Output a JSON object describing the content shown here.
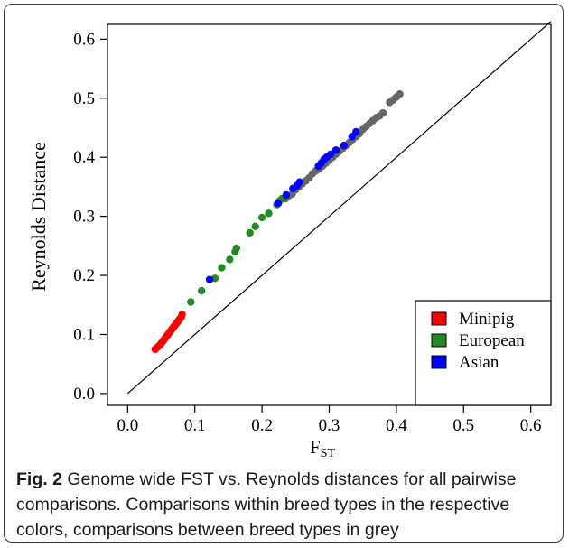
{
  "chart_data": {
    "type": "scatter",
    "xlabel_main": "F",
    "xlabel_sub": "ST",
    "ylabel": "Reynolds Distance",
    "xlim": [
      -0.03,
      0.63
    ],
    "ylim": [
      -0.02,
      0.625
    ],
    "xticks": [
      "0.0",
      "0.1",
      "0.2",
      "0.3",
      "0.4",
      "0.5",
      "0.6"
    ],
    "xtick_values": [
      0.0,
      0.1,
      0.2,
      0.3,
      0.4,
      0.5,
      0.6
    ],
    "yticks": [
      "0.0",
      "0.1",
      "0.2",
      "0.3",
      "0.4",
      "0.5",
      "0.6"
    ],
    "ytick_values": [
      0.0,
      0.1,
      0.2,
      0.3,
      0.4,
      0.5,
      0.6
    ],
    "reference_line": {
      "from": [
        0,
        0
      ],
      "to": [
        0.63,
        0.63
      ]
    },
    "legend_position": "bottom-right",
    "series": [
      {
        "key": "grey",
        "color": "#666666",
        "x": [
          0.235,
          0.24,
          0.245,
          0.25,
          0.255,
          0.26,
          0.265,
          0.27,
          0.275,
          0.28,
          0.285,
          0.29,
          0.295,
          0.3,
          0.305,
          0.31,
          0.315,
          0.32,
          0.325,
          0.33,
          0.335,
          0.34,
          0.345,
          0.35,
          0.355,
          0.36,
          0.365,
          0.37,
          0.375,
          0.38,
          0.39,
          0.395,
          0.4,
          0.405
        ],
        "y": [
          0.33,
          0.335,
          0.338,
          0.345,
          0.35,
          0.355,
          0.36,
          0.365,
          0.372,
          0.377,
          0.38,
          0.385,
          0.39,
          0.395,
          0.4,
          0.405,
          0.41,
          0.415,
          0.42,
          0.425,
          0.43,
          0.435,
          0.44,
          0.447,
          0.452,
          0.457,
          0.462,
          0.467,
          0.47,
          0.475,
          0.493,
          0.497,
          0.502,
          0.507
        ]
      },
      {
        "key": "minipig",
        "name": "Minipig",
        "color": "#ff0000",
        "x": [
          0.041,
          0.045,
          0.048,
          0.05,
          0.052,
          0.054,
          0.056,
          0.058,
          0.06,
          0.062,
          0.064,
          0.066,
          0.068,
          0.07,
          0.072,
          0.074,
          0.076,
          0.078,
          0.08,
          0.081
        ],
        "y": [
          0.075,
          0.079,
          0.082,
          0.085,
          0.088,
          0.091,
          0.094,
          0.097,
          0.1,
          0.103,
          0.106,
          0.109,
          0.112,
          0.115,
          0.118,
          0.121,
          0.124,
          0.127,
          0.13,
          0.134
        ]
      },
      {
        "key": "european",
        "name": "European",
        "color": "#228b22",
        "x": [
          0.094,
          0.11,
          0.13,
          0.14,
          0.152,
          0.16,
          0.162,
          0.182,
          0.19,
          0.2,
          0.21,
          0.222,
          0.226,
          0.23,
          0.236
        ],
        "y": [
          0.155,
          0.174,
          0.195,
          0.213,
          0.227,
          0.24,
          0.246,
          0.272,
          0.283,
          0.298,
          0.305,
          0.32,
          0.326,
          0.33,
          0.334
        ]
      },
      {
        "key": "asian",
        "name": "Asian",
        "color": "#0000ff",
        "x": [
          0.122,
          0.224,
          0.236,
          0.246,
          0.252,
          0.256,
          0.284,
          0.288,
          0.292,
          0.296,
          0.302,
          0.31,
          0.322,
          0.334,
          0.34
        ],
        "y": [
          0.193,
          0.322,
          0.336,
          0.347,
          0.352,
          0.358,
          0.385,
          0.39,
          0.396,
          0.4,
          0.405,
          0.412,
          0.42,
          0.435,
          0.443
        ]
      }
    ]
  },
  "caption": {
    "label": "Fig. 2",
    "text": " Genome wide FST vs. Reynolds distances for all pairwise comparisons. Comparisons within breed types in the respective colors, comparisons between breed types in grey"
  }
}
